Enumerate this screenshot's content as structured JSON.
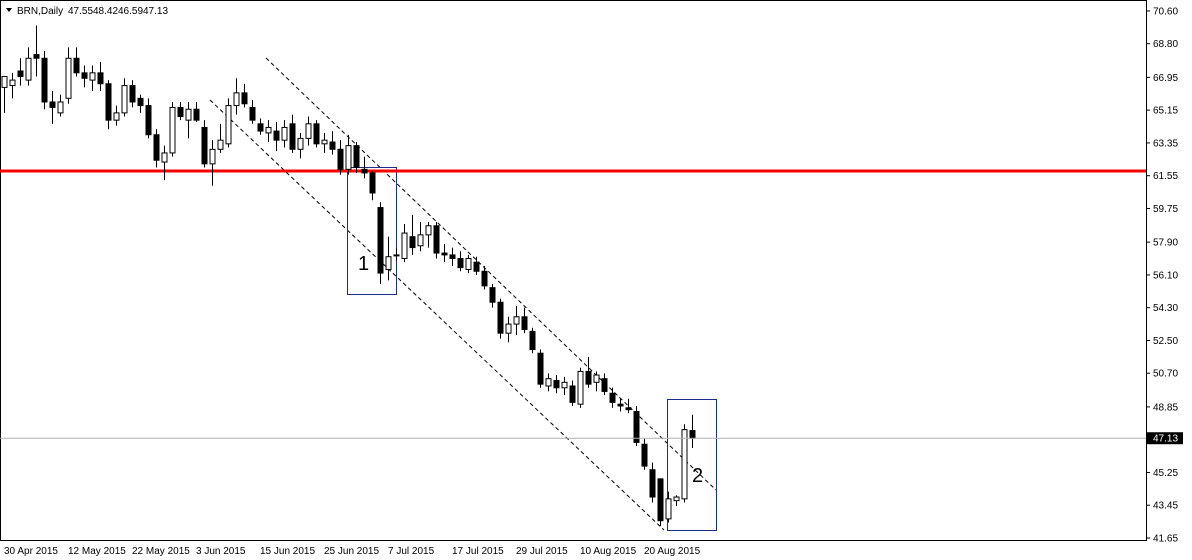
{
  "chart_data": {
    "type": "candlestick",
    "title": "BRN,Daily",
    "categories": [
      "30 Apr 2015",
      null,
      null,
      null,
      null,
      null,
      null,
      null,
      "12 May 2015",
      null,
      null,
      null,
      null,
      null,
      null,
      null,
      "22 May 2015",
      null,
      null,
      null,
      null,
      null,
      null,
      null,
      "3 Jun 2015",
      null,
      null,
      null,
      null,
      null,
      null,
      null,
      "15 Jun 2015",
      null,
      null,
      null,
      null,
      null,
      null,
      null,
      "25 Jun 2015",
      null,
      null,
      null,
      null,
      null,
      null,
      null,
      "7 Jul 2015",
      null,
      null,
      null,
      null,
      null,
      null,
      null,
      "17 Jul 2015",
      null,
      null,
      null,
      null,
      null,
      null,
      null,
      "29 Jul 2015",
      null,
      null,
      null,
      null,
      null,
      null,
      null,
      "10 Aug 2015",
      null,
      null,
      null,
      null,
      null,
      null,
      null,
      "20 Aug 2015",
      null,
      null,
      null,
      null,
      null,
      null
    ],
    "open": [
      66.4,
      66.5,
      67.3,
      66.8,
      68.2,
      68.0,
      65.6,
      65.0,
      65.8,
      68.0,
      67.2,
      66.8,
      67.2,
      66.6,
      64.6,
      65.0,
      66.5,
      65.8,
      65.4,
      63.8,
      62.3,
      62.8,
      65.3,
      64.6,
      65.2,
      64.2,
      62.2,
      63.0,
      63.3,
      65.4,
      66.1,
      65.3,
      64.4,
      63.9,
      64.0,
      63.5,
      64.4,
      63.0,
      63.6,
      64.4,
      63.3,
      63.4,
      63.0,
      61.9,
      63.2,
      61.9,
      61.7,
      59.8,
      56.4,
      57.2,
      57.0,
      58.2,
      57.7,
      58.3,
      58.8,
      57.3,
      57.2,
      57.0,
      56.4,
      56.8,
      56.3,
      55.4,
      54.6,
      52.9,
      53.4,
      53.8,
      53.0,
      51.8,
      50.0,
      50.3,
      49.9,
      50.0,
      49.0,
      50.8,
      50.2,
      50.4,
      49.6,
      49.0,
      48.8,
      48.6,
      46.8,
      45.4,
      44.9,
      42.7,
      43.7,
      43.8,
      47.55
    ],
    "high": [
      67.0,
      67.2,
      68.0,
      68.6,
      69.8,
      68.4,
      66.2,
      66.0,
      68.6,
      68.6,
      67.6,
      67.6,
      67.8,
      66.8,
      65.4,
      66.9,
      66.8,
      66.0,
      65.8,
      64.1,
      63.2,
      65.6,
      65.6,
      65.6,
      65.6,
      64.6,
      63.5,
      64.4,
      65.8,
      66.9,
      66.6,
      65.7,
      64.7,
      64.6,
      64.5,
      64.6,
      64.9,
      63.9,
      64.8,
      64.6,
      63.9,
      64.0,
      63.5,
      63.8,
      63.4,
      62.6,
      61.8,
      60.1,
      58.2,
      57.6,
      58.9,
      59.4,
      59.0,
      59.0,
      59.0,
      57.8,
      57.6,
      57.4,
      57.2,
      57.1,
      56.6,
      55.6,
      54.8,
      53.8,
      54.4,
      54.3,
      53.2,
      52.0,
      50.7,
      50.6,
      50.5,
      50.3,
      51.0,
      51.6,
      50.8,
      50.7,
      49.9,
      49.3,
      49.3,
      48.9,
      47.1,
      45.8,
      44.9,
      44.2,
      44.0,
      47.9,
      48.42
    ],
    "low": [
      65.0,
      65.8,
      66.5,
      66.5,
      67.0,
      65.2,
      64.4,
      64.8,
      65.5,
      67.0,
      66.4,
      66.2,
      66.2,
      64.1,
      64.3,
      64.8,
      65.3,
      65.0,
      63.6,
      62.0,
      61.3,
      62.6,
      64.6,
      63.6,
      64.5,
      62.0,
      61.0,
      62.8,
      63.1,
      64.9,
      65.3,
      64.4,
      63.8,
      63.4,
      62.9,
      63.1,
      62.8,
      62.5,
      63.2,
      63.1,
      62.8,
      62.7,
      61.6,
      61.6,
      61.7,
      61.4,
      60.2,
      55.6,
      55.8,
      56.9,
      56.8,
      57.2,
      57.4,
      57.6,
      57.0,
      56.8,
      56.6,
      56.3,
      56.2,
      56.1,
      55.3,
      54.3,
      52.6,
      52.4,
      52.8,
      52.9,
      51.8,
      49.9,
      49.7,
      49.6,
      49.5,
      48.9,
      48.8,
      49.9,
      49.7,
      49.5,
      48.8,
      48.6,
      48.5,
      46.7,
      45.4,
      43.6,
      42.3,
      42.5,
      43.4,
      43.6,
      46.59
    ],
    "close": [
      67.0,
      66.8,
      67.0,
      68.0,
      68.0,
      65.6,
      65.3,
      65.6,
      68.0,
      67.2,
      66.9,
      67.2,
      66.6,
      64.6,
      65.0,
      66.5,
      65.6,
      65.4,
      63.8,
      62.4,
      62.8,
      65.3,
      64.8,
      65.2,
      64.6,
      62.2,
      63.0,
      63.5,
      65.4,
      66.1,
      65.5,
      64.6,
      64.0,
      64.2,
      63.5,
      64.2,
      63.0,
      63.6,
      64.4,
      63.3,
      63.5,
      63.0,
      61.9,
      63.2,
      62.0,
      61.7,
      60.6,
      56.2,
      57.1,
      57.2,
      58.4,
      57.6,
      58.3,
      58.8,
      57.3,
      57.2,
      57.0,
      56.5,
      57.0,
      56.3,
      55.5,
      54.6,
      52.9,
      53.4,
      53.8,
      53.1,
      52.0,
      50.1,
      50.4,
      49.9,
      50.2,
      49.1,
      50.8,
      50.1,
      50.6,
      49.7,
      49.1,
      48.9,
      48.7,
      46.9,
      45.6,
      43.9,
      42.6,
      43.8,
      43.9,
      47.6,
      47.13
    ],
    "ylim": [
      41.54,
      71.2
    ],
    "yticks": [
      {
        "value": 70.6,
        "label": "70.60"
      },
      {
        "value": 68.8,
        "label": "68.80"
      },
      {
        "value": 66.95,
        "label": "66.95"
      },
      {
        "value": 65.15,
        "label": "65.15"
      },
      {
        "value": 63.35,
        "label": "63.35"
      },
      {
        "value": 61.55,
        "label": "61.55"
      },
      {
        "value": 59.75,
        "label": "59.75"
      },
      {
        "value": 57.9,
        "label": "57.90"
      },
      {
        "value": 56.1,
        "label": "56.10"
      },
      {
        "value": 54.3,
        "label": "54.30"
      },
      {
        "value": 52.5,
        "label": "52.50"
      },
      {
        "value": 50.7,
        "label": "50.70"
      },
      {
        "value": 48.85,
        "label": "48.85"
      },
      {
        "value": 45.25,
        "label": "45.25"
      },
      {
        "value": 43.45,
        "label": "43.45"
      },
      {
        "value": 41.65,
        "label": "41.65"
      }
    ],
    "hline": {
      "value": 61.81,
      "color": "#ff0000"
    },
    "annotations": [
      {
        "text": "1"
      },
      {
        "text": "2"
      }
    ]
  }
}
